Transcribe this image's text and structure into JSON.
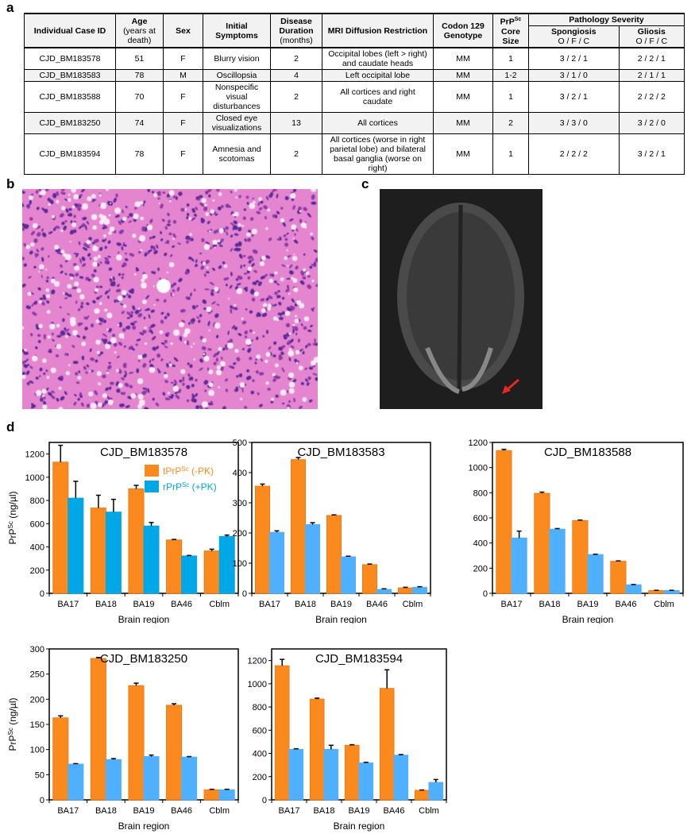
{
  "panels": {
    "a": "a",
    "b": "b",
    "c": "c",
    "d": "d"
  },
  "table": {
    "headers": {
      "id": "Individual Case ID",
      "age": "Age",
      "age_sub": "(years at death)",
      "sex": "Sex",
      "symptoms": "Initial Symptoms",
      "duration": "Disease Duration",
      "duration_sub": "(months)",
      "mri": "MRI Diffusion Restriction",
      "codon": "Codon 129 Genotype",
      "core": "PrP",
      "core_sup": "Sc",
      "core2": "Core Size",
      "pathology": "Pathology Severity",
      "spong": "Spongiosis",
      "gliosis": "Gliosis",
      "ofc": "O / F / C"
    },
    "rows": [
      [
        "CJD_BM183578",
        "51",
        "F",
        "Blurry vision",
        "2",
        "Occipital lobes (left > right) and caudate heads",
        "MM",
        "1",
        "3 / 2 / 1",
        "2 / 2 / 1"
      ],
      [
        "CJD_BM183583",
        "78",
        "M",
        "Oscillopsia",
        "4",
        "Left occipital lobe",
        "MM",
        "1-2",
        "3 / 1 / 0",
        "2 / 1 / 1"
      ],
      [
        "CJD_BM183588",
        "70",
        "F",
        "Nonspecific visual disturbances",
        "2",
        "All cortices and right caudate",
        "MM",
        "1",
        "3 / 2 / 1",
        "2 / 2 / 2"
      ],
      [
        "CJD_BM183250",
        "74",
        "F",
        "Closed eye visualizations",
        "13",
        "All cortices",
        "MM",
        "2",
        "3 / 3 / 0",
        "3 / 2 / 0"
      ],
      [
        "CJD_BM183594",
        "78",
        "F",
        "Amnesia and scotomas",
        "2",
        "All cortices (worse in right parietal lobe) and bilateral basal ganglia (worse on right)",
        "MM",
        "1",
        "2 / 2 / 2",
        "3 / 2 / 1"
      ]
    ]
  },
  "colors": {
    "orange": "#fb8a1e",
    "blue1": "#00a7e6",
    "blue": "#4fb0ff"
  },
  "chart_data": [
    {
      "type": "bar",
      "title": "CJD_BM183578",
      "categories": [
        "BA17",
        "BA18",
        "BA19",
        "BA46",
        "Cblm"
      ],
      "xlabel": "Brain region",
      "ylabel": "PrPSc (ng/µl)",
      "ylim": [
        0,
        1300
      ],
      "yticks": [
        0,
        200,
        400,
        600,
        800,
        1000,
        1200
      ],
      "legend": [
        {
          "name": "tPrP",
          "sup": "Sc",
          "suffix": " (-PK)"
        },
        {
          "name": "rPrP",
          "sup": "Sc",
          "suffix": " (+PK)"
        }
      ],
      "legend_placement": "top-right",
      "series": [
        {
          "name": "tPrPSc (-PK)",
          "values": [
            1130,
            735,
            900,
            460,
            365
          ],
          "errors": [
            145,
            110,
            30,
            4,
            15
          ]
        },
        {
          "name": "rPrPSc (+PK)",
          "values": [
            820,
            700,
            580,
            322,
            490
          ],
          "errors": [
            145,
            110,
            30,
            4,
            12
          ]
        }
      ]
    },
    {
      "type": "bar",
      "title": "CJD_BM183583",
      "categories": [
        "BA17",
        "BA18",
        "BA19",
        "BA46",
        "Cblm"
      ],
      "xlabel": "Brain region",
      "ylim": [
        0,
        500
      ],
      "yticks": [
        0,
        100,
        200,
        300,
        400,
        500
      ],
      "series": [
        {
          "name": "tPrPSc (-PK)",
          "values": [
            355,
            443,
            258,
            95,
            18
          ],
          "errors": [
            7,
            7,
            2,
            2,
            2
          ]
        },
        {
          "name": "rPrPSc (+PK)",
          "values": [
            202,
            228,
            121,
            13,
            20
          ],
          "errors": [
            5,
            6,
            2,
            2,
            2
          ]
        }
      ]
    },
    {
      "type": "bar",
      "title": "CJD_BM183588",
      "categories": [
        "BA17",
        "BA18",
        "BA19",
        "BA46",
        "Cblm"
      ],
      "xlabel": "Brain region",
      "ylim": [
        0,
        1200
      ],
      "yticks": [
        0,
        200,
        400,
        600,
        800,
        1000,
        1200
      ],
      "series": [
        {
          "name": "tPrPSc (-PK)",
          "values": [
            1135,
            795,
            578,
            255,
            22
          ],
          "errors": [
            10,
            10,
            5,
            3,
            2
          ]
        },
        {
          "name": "rPrPSc (+PK)",
          "values": [
            440,
            510,
            308,
            68,
            22
          ],
          "errors": [
            55,
            5,
            3,
            2,
            2
          ]
        }
      ]
    },
    {
      "type": "bar",
      "title": "CJD_BM183250",
      "categories": [
        "BA17",
        "BA18",
        "BA19",
        "BA46",
        "Cblm"
      ],
      "xlabel": "Brain region",
      "ylabel": "PrPSc (ng/µl)",
      "ylim": [
        0,
        300
      ],
      "yticks": [
        0,
        50,
        100,
        150,
        200,
        250,
        300
      ],
      "series": [
        {
          "name": "tPrPSc (-PK)",
          "values": [
            163,
            281,
            227,
            188,
            20
          ],
          "errors": [
            4,
            2,
            5,
            3,
            1
          ]
        },
        {
          "name": "rPrPSc (+PK)",
          "values": [
            71,
            80,
            86,
            85,
            20
          ],
          "errors": [
            1,
            2,
            3,
            1,
            1
          ]
        }
      ]
    },
    {
      "type": "bar",
      "title": "CJD_BM183594",
      "categories": [
        "BA17",
        "BA18",
        "BA19",
        "BA46",
        "Cblm"
      ],
      "xlabel": "Brain region",
      "ylim": [
        0,
        1300
      ],
      "yticks": [
        0,
        200,
        400,
        600,
        800,
        1000,
        1200
      ],
      "series": [
        {
          "name": "tPrPSc (-PK)",
          "values": [
            1155,
            868,
            470,
            960,
            82
          ],
          "errors": [
            55,
            8,
            5,
            160,
            3
          ]
        },
        {
          "name": "rPrPSc (+PK)",
          "values": [
            435,
            435,
            318,
            385,
            150
          ],
          "errors": [
            5,
            35,
            5,
            5,
            25
          ]
        }
      ]
    }
  ]
}
